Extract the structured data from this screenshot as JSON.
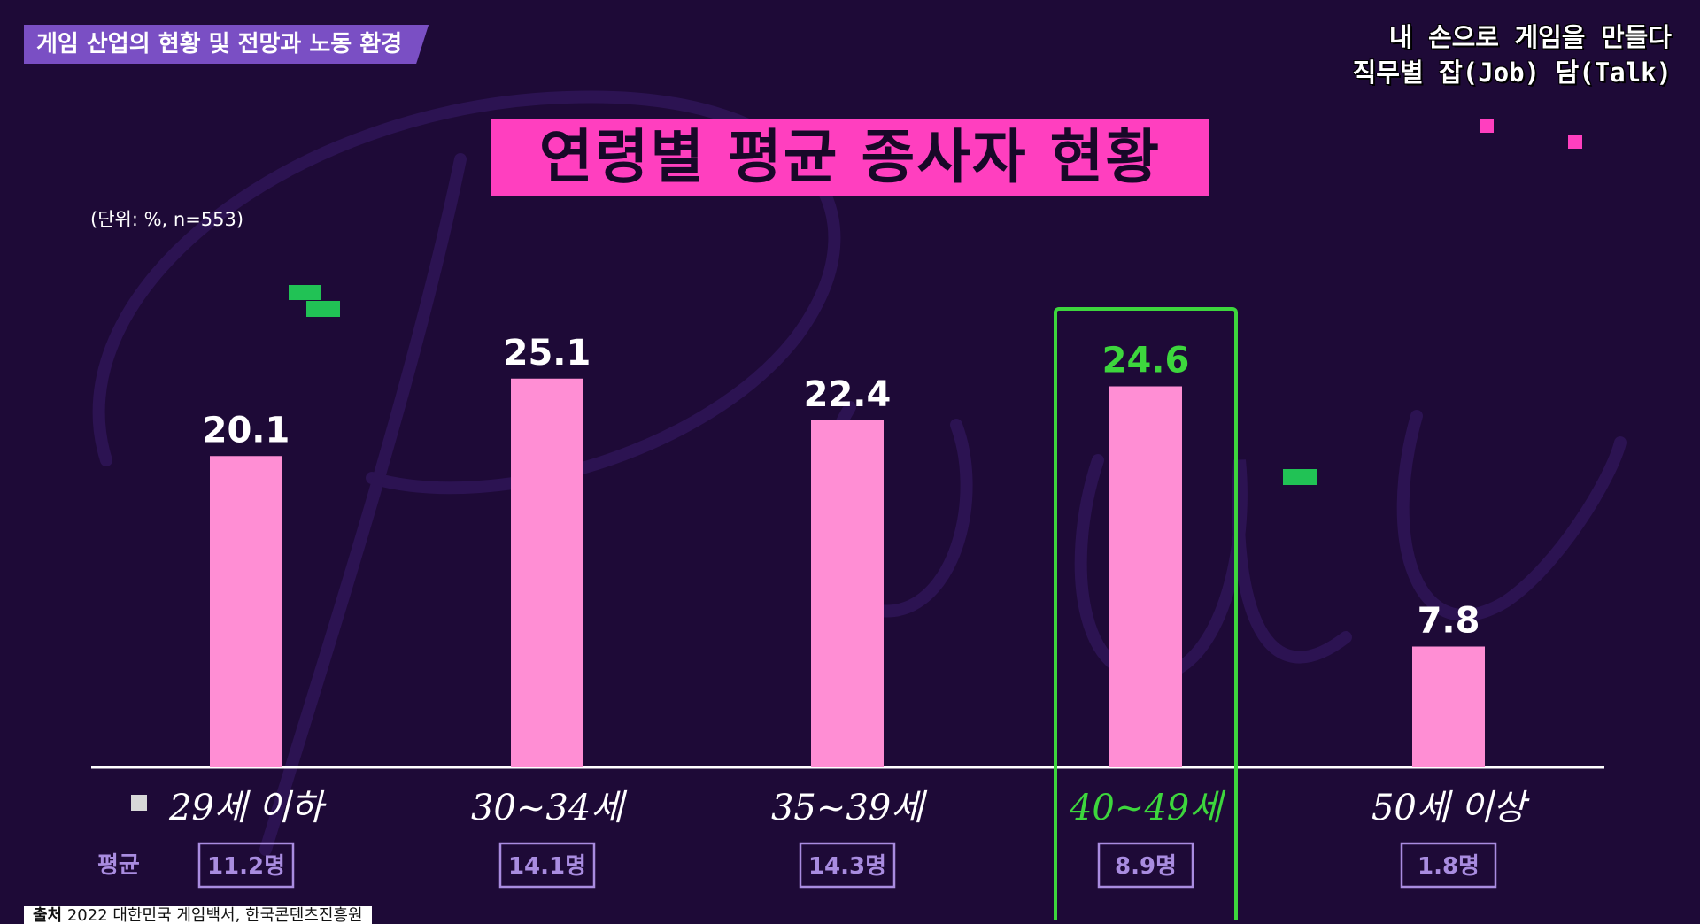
{
  "section_tag": "게임 산업의 현황 및 전망과 노동 환경",
  "brand": {
    "line1": "내 손으로 게임을 만들다",
    "line2": "직무별 잡(Job) 담(Talk)"
  },
  "unit_note": "(단위: %, n=553)",
  "avg_label": "평균",
  "source_label": "출처",
  "source_text": "2022 대한민국 게임백서, 한국콘텐츠진흥원",
  "colors": {
    "background": "#1e0a37",
    "bar": "#ff8ed4",
    "title_bg": "#ff3fbf",
    "highlight": "#3dd63d",
    "tag": "#7a4fc4",
    "avg_box": "#a98ce0"
  },
  "chart_data": {
    "type": "bar",
    "title": "연령별 평균 종사자 현황",
    "categories": [
      "29세 이하",
      "30~34세",
      "35~39세",
      "40~49세",
      "50세 이상"
    ],
    "values": [
      20.1,
      25.1,
      22.4,
      24.6,
      7.8
    ],
    "value_labels": [
      "20.1",
      "25.1",
      "22.4",
      "24.6",
      "7.8"
    ],
    "avg_counts": [
      "11.2명",
      "14.1명",
      "14.3명",
      "8.9명",
      "1.8명"
    ],
    "highlight_index": 3,
    "ylim": [
      0,
      30
    ],
    "grid": false,
    "legend": "none"
  }
}
